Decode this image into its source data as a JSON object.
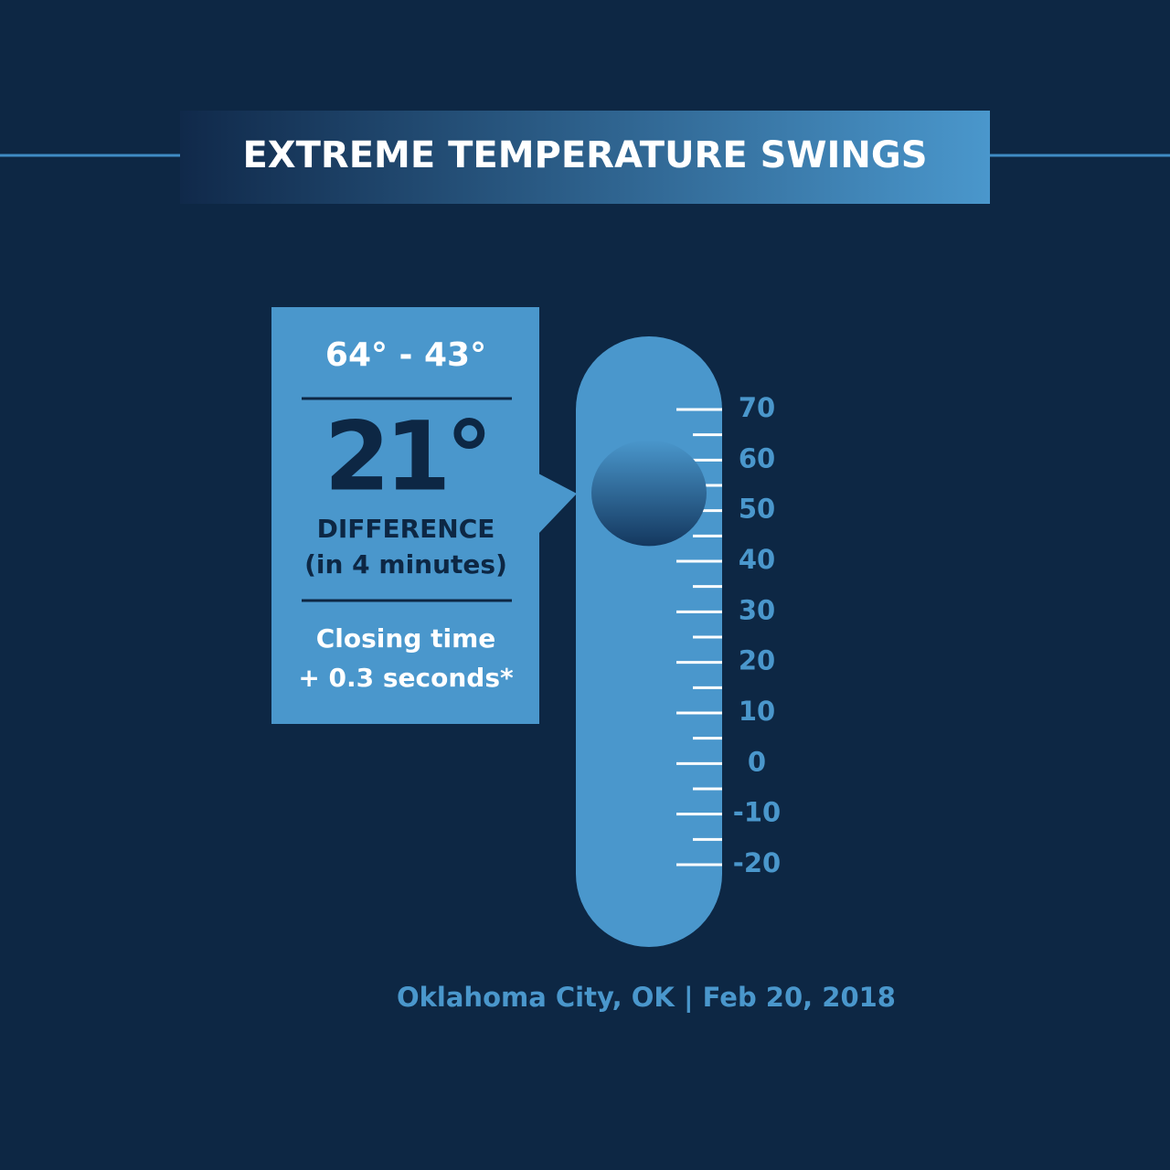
{
  "chart_data": {
    "type": "thermometer",
    "title": "EXTREME TEMPERATURE SWINGS",
    "range_text": "64° - 43°",
    "difference": "21°",
    "difference_label": "DIFFERENCE",
    "duration": "(in 4 minutes)",
    "note_lines": [
      "Closing time",
      "+ 0.3 seconds*"
    ],
    "values": [
      64,
      43
    ],
    "ylim": [
      -20,
      70
    ],
    "yticks": [
      70,
      60,
      50,
      40,
      30,
      20,
      10,
      0,
      -10,
      -20
    ],
    "footer": "Oklahoma City, OK | Feb 20, 2018"
  }
}
